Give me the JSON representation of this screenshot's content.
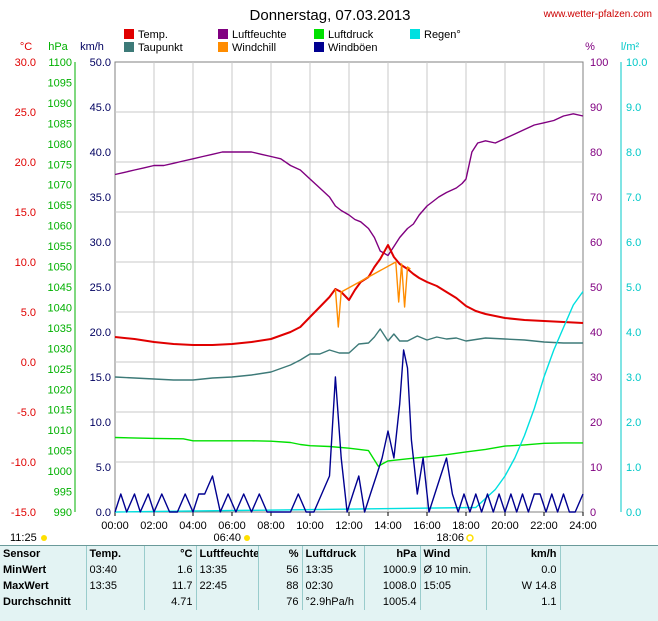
{
  "header": {
    "title": "Donnerstag, 07.03.2013",
    "site": "www.wetter-pfalzen.com"
  },
  "legend": [
    {
      "label": "Temp.",
      "color": "#e00000"
    },
    {
      "label": "Taupunkt",
      "color": "#3d7a78"
    },
    {
      "label": "Luftfeuchte",
      "color": "#800080"
    },
    {
      "label": "Windchill",
      "color": "#ff8c00"
    },
    {
      "label": "Luftdruck",
      "color": "#00e000"
    },
    {
      "label": "Windböen",
      "color": "#000090"
    },
    {
      "label": "Regen°",
      "color": "#00e0e0"
    }
  ],
  "units": {
    "temp": "°C",
    "pressure": "hPa",
    "wind": "km/h",
    "humidity": "%",
    "rain": "l/m²"
  },
  "sun": {
    "sunrise_label": "06:40",
    "sunset_label": "18:06",
    "left_label": "11:25"
  },
  "chart_data": {
    "type": "line",
    "title": "Donnerstag, 07.03.2013",
    "x_ticks": [
      "00:00",
      "02:00",
      "04:00",
      "06:00",
      "08:00",
      "10:00",
      "12:00",
      "14:00",
      "16:00",
      "18:00",
      "20:00",
      "22:00",
      "24:00"
    ],
    "xlim": [
      0,
      24
    ],
    "axes": {
      "temp": {
        "label": "°C",
        "min": -15,
        "max": 30,
        "ticks": [
          "30.0",
          "25.0",
          "20.0",
          "15.0",
          "10.0",
          "5.0",
          "0.0",
          "-5.0",
          "-10.0",
          "-15.0"
        ],
        "color": "#e00000"
      },
      "pressure": {
        "label": "hPa",
        "min": 990,
        "max": 1100,
        "ticks": [
          "1100",
          "1095",
          "1090",
          "1085",
          "1080",
          "1075",
          "1070",
          "1065",
          "1060",
          "1055",
          "1050",
          "1045",
          "1040",
          "1035",
          "1030",
          "1025",
          "1020",
          "1015",
          "1010",
          "1005",
          "1000",
          "995",
          "990"
        ],
        "color": "#00b000"
      },
      "wind": {
        "label": "km/h",
        "min": 0,
        "max": 50,
        "ticks": [
          "50.0",
          "45.0",
          "40.0",
          "35.0",
          "30.0",
          "25.0",
          "20.0",
          "15.0",
          "10.0",
          "5.0",
          "0.0"
        ],
        "color": "#000060"
      },
      "humidity": {
        "label": "%",
        "min": 0,
        "max": 100,
        "ticks": [
          "100",
          "90",
          "80",
          "70",
          "60",
          "50",
          "40",
          "30",
          "20",
          "10",
          "0"
        ],
        "color": "#800080"
      },
      "rain": {
        "label": "l/m²",
        "min": 0,
        "max": 10,
        "ticks": [
          "10.0",
          "9.0",
          "8.0",
          "7.0",
          "6.0",
          "5.0",
          "4.0",
          "3.0",
          "2.0",
          "1.0",
          "0.0"
        ],
        "color": "#00c8c8"
      }
    },
    "series": [
      {
        "name": "Luftfeuchte",
        "axis": "humidity",
        "color": "#800080",
        "x": [
          0,
          0.5,
          1,
          1.5,
          2,
          2.5,
          3,
          3.5,
          4,
          4.5,
          5,
          5.5,
          6,
          6.5,
          7,
          7.5,
          8,
          8.5,
          9,
          9.5,
          10,
          10.5,
          11,
          11.3,
          11.6,
          12,
          12.3,
          12.6,
          13,
          13.3,
          13.6,
          14,
          14.3,
          14.6,
          15,
          15.3,
          15.6,
          16,
          16.3,
          16.6,
          17,
          17.5,
          17.8,
          18,
          18.3,
          18.6,
          19,
          19.5,
          20,
          20.5,
          21,
          21.5,
          22,
          22.5,
          23,
          23.5,
          24
        ],
        "y": [
          75,
          75.5,
          76,
          76.5,
          77,
          77,
          77.5,
          78,
          78.5,
          79,
          79.5,
          80,
          80,
          80,
          80,
          79.5,
          79,
          78.5,
          77,
          76,
          74,
          72,
          70,
          68,
          67,
          66,
          65,
          64.5,
          63,
          61,
          58,
          57,
          59,
          61,
          63,
          64,
          66,
          68,
          69,
          70,
          71,
          72,
          73,
          74,
          80,
          82,
          82.5,
          82,
          83,
          84,
          85,
          86,
          86.5,
          87,
          88,
          88.5,
          88
        ]
      },
      {
        "name": "Temp.",
        "axis": "temp",
        "color": "#e00000",
        "x": [
          0,
          1,
          2,
          3,
          4,
          5,
          6,
          7,
          8,
          9,
          9.5,
          10,
          10.5,
          11,
          11.3,
          11.6,
          12,
          12.3,
          12.6,
          13,
          13.3,
          13.6,
          14,
          14.3,
          14.6,
          15,
          15.3,
          15.6,
          16,
          16.5,
          17,
          17.5,
          18,
          18.5,
          19,
          20,
          21,
          22,
          23,
          24
        ],
        "y": [
          2.5,
          2.3,
          2.0,
          1.8,
          1.7,
          1.7,
          1.8,
          2.0,
          2.3,
          3.0,
          3.5,
          4.5,
          5.5,
          6.5,
          7.3,
          7.0,
          6.2,
          7.2,
          8.0,
          8.5,
          9.5,
          10.3,
          11.7,
          10.5,
          9.8,
          9.3,
          8.8,
          8.4,
          8.0,
          7.6,
          7.0,
          6.4,
          5.6,
          5.1,
          4.8,
          4.4,
          4.2,
          4.1,
          4.0,
          3.9
        ]
      },
      {
        "name": "Windchill",
        "axis": "temp",
        "color": "#ff8c00",
        "x": [
          11.3,
          11.45,
          11.6,
          14.4,
          14.55,
          14.7,
          14.85,
          15.0,
          15.15
        ],
        "y": [
          7.3,
          3.5,
          7.0,
          10.0,
          6.0,
          9.8,
          5.5,
          9.5,
          9.3
        ]
      },
      {
        "name": "Taupunkt",
        "axis": "temp",
        "color": "#3d7a78",
        "x": [
          0,
          1,
          2,
          3,
          4,
          5,
          6,
          7,
          8,
          9,
          9.5,
          10,
          10.5,
          11,
          11.5,
          12,
          12.5,
          13,
          13.3,
          13.6,
          14,
          14.3,
          14.6,
          15,
          15.5,
          16,
          16.5,
          17,
          17.5,
          18,
          19,
          20,
          21,
          22,
          23,
          24
        ],
        "y": [
          -1.5,
          -1.6,
          -1.7,
          -1.8,
          -1.8,
          -1.6,
          -1.5,
          -1.3,
          -1.0,
          -0.3,
          0.2,
          0.8,
          0.8,
          1.2,
          0.9,
          0.9,
          1.8,
          1.9,
          2.5,
          3.3,
          2.1,
          2.8,
          2.1,
          2.1,
          2.6,
          2.2,
          2.5,
          2.3,
          2.4,
          2.1,
          2.4,
          2.3,
          2.2,
          2.0,
          1.9,
          1.9
        ]
      },
      {
        "name": "Luftdruck",
        "axis": "pressure",
        "color": "#00e000",
        "x": [
          0,
          2,
          3.5,
          4,
          5,
          6,
          7,
          8,
          9,
          9.5,
          10,
          11,
          12,
          13,
          13.5,
          14,
          15,
          16,
          17,
          18,
          19,
          20,
          21,
          22,
          23,
          24
        ],
        "y": [
          1008.2,
          1008.0,
          1007.9,
          1007.4,
          1007.4,
          1007.4,
          1007.4,
          1007.3,
          1007.0,
          1006.5,
          1006.2,
          1006.0,
          1005.6,
          1005.0,
          1001.2,
          1002.5,
          1003.0,
          1003.5,
          1004.0,
          1004.7,
          1005.3,
          1006.1,
          1006.4,
          1006.8,
          1006.9,
          1006.9
        ]
      },
      {
        "name": "Regen°",
        "axis": "rain",
        "color": "#00e0e0",
        "x": [
          0,
          18.5,
          19,
          19.5,
          20,
          20.5,
          21,
          21.5,
          22,
          22.5,
          23,
          23.5,
          24
        ],
        "y": [
          0,
          0.1,
          0.3,
          0.5,
          0.8,
          1.2,
          1.7,
          2.3,
          3.0,
          3.6,
          4.1,
          4.6,
          4.9
        ]
      },
      {
        "name": "Windböen",
        "axis": "wind",
        "color": "#000090",
        "x": [
          0,
          0.3,
          0.6,
          1.0,
          1.3,
          1.7,
          2.0,
          2.4,
          2.8,
          3.2,
          3.6,
          4.0,
          4.3,
          4.6,
          5.0,
          5.4,
          5.8,
          6.2,
          6.6,
          7.0,
          7.4,
          7.8,
          8.2,
          8.6,
          9.0,
          9.4,
          9.8,
          10.2,
          10.6,
          11.0,
          11.3,
          11.6,
          11.9,
          12.2,
          12.5,
          12.8,
          13.1,
          13.4,
          13.7,
          14.0,
          14.3,
          14.6,
          14.8,
          15.0,
          15.2,
          15.5,
          15.8,
          16.1,
          16.4,
          16.7,
          17.0,
          17.3,
          17.6,
          17.9,
          18.2,
          18.5,
          18.8,
          19.1,
          19.4,
          19.7,
          20.0,
          20.3,
          20.6,
          20.9,
          21.2,
          21.5,
          21.8,
          22.1,
          22.4,
          22.7,
          23.0,
          23.3,
          23.6,
          24.0
        ],
        "y": [
          0,
          2,
          0,
          2,
          0,
          2,
          0,
          2,
          0,
          0,
          2,
          0,
          2,
          2,
          4,
          0,
          2,
          0,
          2,
          0,
          2,
          0,
          0,
          0,
          0,
          2,
          0,
          0,
          2,
          4,
          15,
          6,
          0,
          2,
          4,
          0,
          2,
          4,
          6,
          9,
          6,
          12,
          18,
          16,
          8,
          2,
          6,
          0,
          2,
          4,
          6,
          2,
          0,
          2,
          0,
          2,
          0,
          2,
          0,
          2,
          0,
          2,
          0,
          2,
          0,
          2,
          2,
          0,
          2,
          0,
          2,
          0,
          0,
          2
        ]
      }
    ]
  },
  "stats": {
    "headers": [
      "Sensor",
      "Temp.",
      "°C",
      "Luftfeuchte",
      "%",
      "Luftdruck",
      "hPa",
      "Wind",
      "km/h"
    ],
    "rows": [
      {
        "label": "MinWert",
        "temp_time": "03:40",
        "temp": "1.6",
        "hum_time": "13:35",
        "hum": "56",
        "press_time": "13:35",
        "press": "1000.9",
        "wind_time": "Ø 10 min.",
        "wind": "0.0"
      },
      {
        "label": "MaxWert",
        "temp_time": "13:35",
        "temp": "11.7",
        "hum_time": "22:45",
        "hum": "88",
        "press_time": "02:30",
        "press": "1008.0",
        "wind_time": "15:05",
        "wind": "W 14.8"
      },
      {
        "label": "Durchschnitt",
        "temp_time": "",
        "temp": "4.71",
        "hum_time": "",
        "hum": "76",
        "press_time": "°2.9hPa/h",
        "press": "1005.4",
        "wind_time": "",
        "wind": "1.1"
      }
    ]
  }
}
